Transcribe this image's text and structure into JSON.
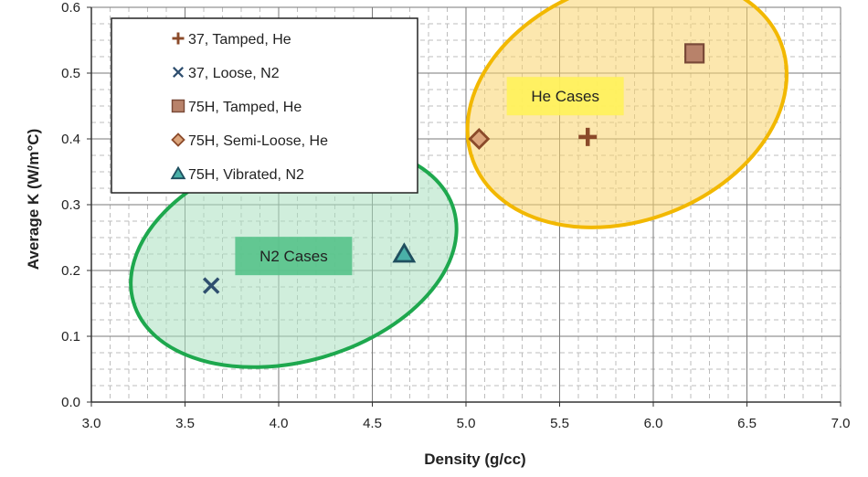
{
  "chart_data": {
    "type": "scatter",
    "xlabel": "Density (g/cc)",
    "ylabel": "Average K (W/m°C)",
    "xlim": [
      3.0,
      7.0
    ],
    "ylim": [
      0.0,
      0.6
    ],
    "x_ticks": [
      3.0,
      3.5,
      4.0,
      4.5,
      5.0,
      5.5,
      6.0,
      6.5,
      7.0
    ],
    "y_ticks": [
      0.0,
      0.1,
      0.2,
      0.3,
      0.4,
      0.5,
      0.6
    ],
    "x_tick_labels": [
      "3.0",
      "3.5",
      "4.0",
      "4.5",
      "5.0",
      "5.5",
      "6.0",
      "6.5",
      "7.0"
    ],
    "y_tick_labels": [
      "0.0",
      "0.1",
      "0.2",
      "0.3",
      "0.4",
      "0.5",
      "0.6"
    ],
    "grid": true,
    "legend_position": "top-left",
    "series": [
      {
        "name": "37, Tamped, He",
        "marker": "plus",
        "color": "#8b4a2a",
        "points": [
          {
            "x": 5.65,
            "y": 0.403
          }
        ]
      },
      {
        "name": "37, Loose, N2",
        "marker": "x",
        "color": "#2f4f6f",
        "points": [
          {
            "x": 3.64,
            "y": 0.177
          }
        ]
      },
      {
        "name": "75H, Tamped, He",
        "marker": "square",
        "color": "#b8826a",
        "points": [
          {
            "x": 6.22,
            "y": 0.53
          }
        ]
      },
      {
        "name": "75H, Semi-Loose, He",
        "marker": "diamond",
        "color": "#b0703a",
        "points": [
          {
            "x": 5.07,
            "y": 0.4
          }
        ]
      },
      {
        "name": "75H, Vibrated, N2",
        "marker": "triangle",
        "color": "#2a8f8a",
        "points": [
          {
            "x": 4.67,
            "y": 0.225
          }
        ]
      }
    ],
    "annotations": [
      {
        "text": "He Cases",
        "x": 5.53,
        "y": 0.465,
        "fill": "#fff25a",
        "ellipse": {
          "cx": 5.86,
          "cy": 0.456,
          "rx": 0.88,
          "ry": 0.18,
          "angle_deg": -21,
          "fill": "#f9d36b",
          "stroke": "#f2b800"
        }
      },
      {
        "text": "N2 Cases",
        "x": 4.08,
        "y": 0.222,
        "fill": "#55c28a",
        "ellipse": {
          "cx": 4.08,
          "cy": 0.222,
          "rx": 0.89,
          "ry": 0.16,
          "angle_deg": -16,
          "fill": "#a9e0c0",
          "stroke": "#1ea84e"
        }
      }
    ]
  }
}
